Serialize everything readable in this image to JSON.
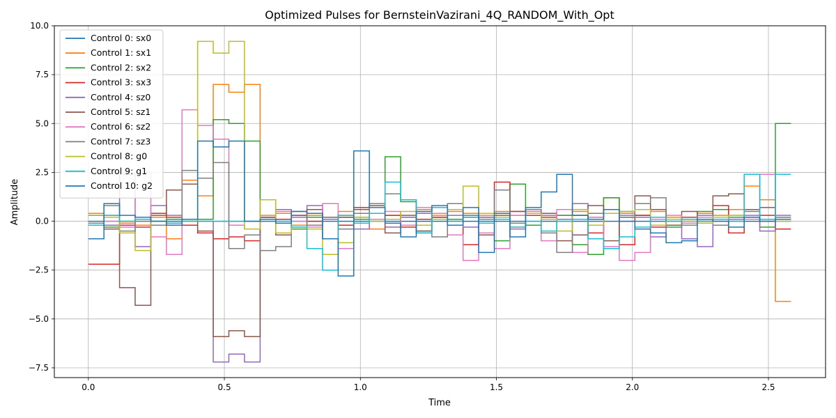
{
  "chart_data": {
    "type": "line",
    "title": "Optimized Pulses for BernsteinVazirani_4Q_RANDOM_With_Opt",
    "xlabel": "Time",
    "ylabel": "Amplitude",
    "xlim": [
      -0.125,
      2.71
    ],
    "ylim": [
      -8.0,
      10.0
    ],
    "xticks": [
      0.0,
      0.5,
      1.0,
      1.5,
      2.0,
      2.5
    ],
    "xtick_labels": [
      "0.0",
      "0.5",
      "1.0",
      "1.5",
      "2.0",
      "2.5"
    ],
    "yticks": [
      -7.5,
      -5.0,
      -2.5,
      0.0,
      2.5,
      5.0,
      7.5,
      10.0
    ],
    "ytick_labels": [
      "−7.5",
      "−5.0",
      "−2.5",
      "0.0",
      "2.5",
      "5.0",
      "7.5",
      "10.0"
    ],
    "grid": true,
    "legend_position": "top-left",
    "step_duration": 0.0574,
    "series": [
      {
        "name": "Control 0: sx0",
        "color": "#1f77b4",
        "values": [
          0.0,
          0.0,
          0.0,
          0.0,
          0.0,
          0.0,
          0.0,
          0.0,
          0.0,
          0.0,
          0.0,
          0.0,
          0.0,
          0.0,
          0.0,
          0.0,
          0.0,
          0.0,
          0.0,
          0.0,
          0.0,
          0.0,
          0.0,
          0.0,
          0.0,
          0.0,
          0.0,
          0.0,
          0.0,
          0.0,
          0.0,
          0.0,
          0.0,
          0.0,
          0.0,
          0.0,
          0.0,
          0.0,
          0.0,
          0.0,
          0.0,
          0.0,
          0.0,
          0.0,
          0.0
        ]
      },
      {
        "name": "Control 1: sx1",
        "color": "#ff7f0e",
        "values": [
          0.4,
          0.3,
          -0.1,
          -0.2,
          0.2,
          -0.9,
          2.1,
          1.3,
          7.0,
          6.6,
          7.0,
          0.3,
          0.4,
          -0.2,
          0.3,
          0.2,
          0.5,
          0.1,
          -0.4,
          0.3,
          0.2,
          0.6,
          0.3,
          0.5,
          0.4,
          0.3,
          0.5,
          0.3,
          0.6,
          0.4,
          0.3,
          0.5,
          0.2,
          1.2,
          0.4,
          0.3,
          0.5,
          0.2,
          0.1,
          0.4,
          0.3,
          0.6,
          1.8,
          1.1,
          -4.1
        ]
      },
      {
        "name": "Control 2: sx2",
        "color": "#2ca02c",
        "values": [
          0.3,
          -0.3,
          0.0,
          0.1,
          0.0,
          0.1,
          0.0,
          0.1,
          5.2,
          5.0,
          4.1,
          0.2,
          0.1,
          -0.4,
          0.2,
          0.1,
          0.2,
          0.1,
          0.0,
          3.3,
          1.0,
          -0.5,
          0.2,
          0.1,
          0.3,
          0.2,
          -1.0,
          1.9,
          -0.2,
          0.4,
          0.3,
          -1.2,
          -1.7,
          1.2,
          0.5,
          0.3,
          0.6,
          -0.3,
          0.0,
          0.5,
          0.6,
          0.2,
          0.1,
          -0.3,
          5.0
        ]
      },
      {
        "name": "Control 3: sx3",
        "color": "#d62728",
        "values": [
          -2.2,
          -2.2,
          -0.2,
          -0.3,
          0.4,
          0.2,
          -0.2,
          -0.6,
          -0.9,
          -0.8,
          -1.0,
          0.2,
          0.1,
          0.3,
          0.0,
          0.2,
          -0.2,
          0.7,
          0.1,
          0.3,
          -0.3,
          0.1,
          0.2,
          0.0,
          -1.2,
          0.4,
          2.0,
          0.5,
          0.3,
          0.2,
          0.1,
          0.3,
          -0.6,
          0.4,
          -1.2,
          0.3,
          -0.3,
          0.1,
          0.2,
          0.0,
          0.8,
          -0.6,
          0.1,
          0.3,
          -0.4
        ]
      },
      {
        "name": "Control 4: sz0",
        "color": "#9467bd",
        "values": [
          0.3,
          -0.2,
          2.4,
          -1.3,
          0.8,
          0.3,
          0.1,
          0.0,
          -7.2,
          -6.8,
          -7.2,
          0.1,
          0.6,
          0.2,
          0.8,
          0.1,
          0.3,
          -0.4,
          0.9,
          -0.3,
          0.2,
          0.4,
          0.1,
          0.3,
          -0.3,
          0.2,
          0.4,
          -0.4,
          0.6,
          0.3,
          0.1,
          0.9,
          0.4,
          0.6,
          0.3,
          0.2,
          -0.8,
          0.1,
          -0.9,
          -1.3,
          -0.2,
          0.1,
          0.3,
          -0.5,
          0.3
        ]
      },
      {
        "name": "Control 5: sz1",
        "color": "#8c564b",
        "values": [
          -0.2,
          -0.4,
          -3.4,
          -4.3,
          0.3,
          1.6,
          1.9,
          -0.5,
          -5.9,
          -5.6,
          -5.9,
          0.2,
          -0.7,
          0.3,
          0.6,
          -0.9,
          0.2,
          0.6,
          0.8,
          -0.6,
          0.3,
          -0.5,
          0.4,
          0.6,
          0.2,
          -0.7,
          0.3,
          0.5,
          0.6,
          0.4,
          -1.0,
          -0.7,
          0.8,
          -1.0,
          0.2,
          1.3,
          0.6,
          -0.2,
          0.5,
          0.0,
          1.3,
          1.4,
          0.6,
          0.7,
          0.1
        ]
      },
      {
        "name": "Control 6: sz2",
        "color": "#e377c2",
        "values": [
          -0.2,
          0.0,
          -0.3,
          2.5,
          -0.8,
          -1.7,
          5.7,
          4.9,
          4.2,
          -0.2,
          -0.4,
          0.1,
          0.5,
          0.0,
          -0.3,
          0.9,
          -1.4,
          0.2,
          0.1,
          0.5,
          -0.2,
          0.7,
          0.4,
          -0.7,
          -2.0,
          -0.6,
          -1.4,
          0.3,
          0.5,
          -1.0,
          0.6,
          -1.6,
          0.2,
          -1.3,
          -2.0,
          -1.6,
          0.1,
          0.3,
          -0.1,
          0.2,
          0.0,
          0.3,
          0.1,
          2.4,
          0.2
        ]
      },
      {
        "name": "Control 7: sz3",
        "color": "#7f7f7f",
        "values": [
          -0.1,
          0.8,
          -0.5,
          0.0,
          -0.2,
          -0.1,
          2.6,
          2.2,
          3.0,
          -1.4,
          -0.7,
          -1.5,
          -1.3,
          0.5,
          -0.2,
          0.2,
          -0.4,
          0.4,
          0.9,
          1.4,
          1.1,
          -0.6,
          -0.8,
          0.9,
          0.3,
          0.1,
          1.6,
          -0.1,
          0.6,
          -0.6,
          -1.6,
          0.3,
          0.4,
          0.6,
          0.2,
          0.9,
          1.2,
          0.0,
          -0.2,
          0.3,
          -0.2,
          0.0,
          0.5,
          0.0,
          0.2
        ]
      },
      {
        "name": "Control 8: g0",
        "color": "#bcbd22",
        "values": [
          0.3,
          0.2,
          -0.6,
          -1.5,
          0.0,
          -0.2,
          0.0,
          9.2,
          8.6,
          9.2,
          -0.4,
          1.1,
          -0.6,
          -0.3,
          -0.4,
          -1.7,
          -1.1,
          0.2,
          0.0,
          0.1,
          0.5,
          -0.2,
          0.1,
          0.6,
          1.8,
          0.4,
          0.2,
          -0.3,
          0.4,
          0.1,
          -0.5,
          0.6,
          -0.2,
          0.4,
          0.5,
          0.6,
          -0.2,
          0.1,
          0.0,
          -0.1,
          0.2,
          0.3,
          0.2,
          0.1,
          0.0
        ]
      },
      {
        "name": "Control 9: g1",
        "color": "#17becf",
        "values": [
          -0.2,
          0.3,
          0.0,
          0.1,
          0.0,
          -0.1,
          0.0,
          0.0,
          0.0,
          0.0,
          0.0,
          0.1,
          0.0,
          -0.3,
          -1.4,
          -2.5,
          0.3,
          -0.1,
          0.4,
          2.0,
          1.1,
          -0.6,
          0.7,
          0.0,
          0.2,
          -0.1,
          0.1,
          -0.3,
          0.0,
          -0.5,
          0.0,
          0.1,
          -0.9,
          -1.4,
          -0.8,
          -0.3,
          0.2,
          0.0,
          0.1,
          0.0,
          0.1,
          0.0,
          2.4,
          0.1,
          2.4
        ]
      },
      {
        "name": "Control 10: g2",
        "color": "#1f77b4",
        "values": [
          -0.9,
          0.9,
          0.3,
          0.2,
          0.0,
          -0.2,
          0.1,
          4.1,
          3.8,
          4.1,
          0.0,
          0.1,
          -0.1,
          0.5,
          0.4,
          -0.9,
          -2.8,
          3.6,
          0.7,
          -0.1,
          -0.8,
          0.5,
          0.8,
          -0.2,
          0.7,
          -1.6,
          0.4,
          -0.8,
          0.7,
          1.5,
          2.4,
          0.3,
          0.1,
          0.6,
          0.0,
          -0.4,
          -0.6,
          -1.1,
          -1.0,
          0.1,
          0.0,
          -0.3,
          0.2,
          0.0,
          0.1
        ]
      }
    ]
  }
}
